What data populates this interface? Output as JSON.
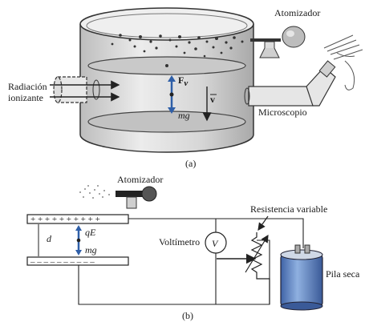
{
  "panel_a": {
    "caption": "(a)",
    "labels": {
      "atomizer": "Atomizador",
      "radiation_line1": "Radiación",
      "radiation_line2": "ionizante",
      "microscope": "Microscopio",
      "force_v": "F",
      "force_v_sub": "v",
      "weight": "mg",
      "velocity": "v"
    }
  },
  "panel_b": {
    "caption": "(b)",
    "labels": {
      "atomizer": "Atomizador",
      "plate_top_charges": "+ + + + + + + + + +",
      "plate_bottom_charges": "– – – – – – – – – –",
      "distance": "d",
      "electric_force": "qE",
      "weight": "mg",
      "voltmeter": "Voltímetro",
      "voltmeter_symbol": "V",
      "variable_resistance": "Resistencia variable",
      "battery": "Pila seca"
    }
  },
  "colors": {
    "arrow_blue": "#2f5fa8",
    "chamber_fill": "#d9d9d9",
    "plate_fill": "#cfcfcf",
    "battery_blue": "#5f86c7",
    "line": "#222222"
  }
}
